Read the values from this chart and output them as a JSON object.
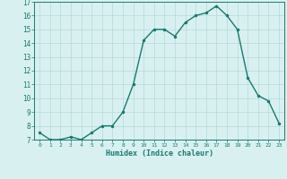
{
  "x": [
    0,
    1,
    2,
    3,
    4,
    5,
    6,
    7,
    8,
    9,
    10,
    11,
    12,
    13,
    14,
    15,
    16,
    17,
    18,
    19,
    20,
    21,
    22,
    23
  ],
  "y": [
    7.5,
    7.0,
    7.0,
    7.2,
    7.0,
    7.5,
    8.0,
    8.0,
    9.0,
    11.0,
    14.2,
    15.0,
    15.0,
    14.5,
    15.5,
    16.0,
    16.2,
    16.7,
    16.0,
    15.0,
    11.5,
    10.2,
    9.8,
    8.2
  ],
  "xlabel": "Humidex (Indice chaleur)",
  "ylim": [
    7,
    17
  ],
  "xlim": [
    -0.5,
    23.5
  ],
  "yticks": [
    7,
    8,
    9,
    10,
    11,
    12,
    13,
    14,
    15,
    16,
    17
  ],
  "xticks": [
    0,
    1,
    2,
    3,
    4,
    5,
    6,
    7,
    8,
    9,
    10,
    11,
    12,
    13,
    14,
    15,
    16,
    17,
    18,
    19,
    20,
    21,
    22,
    23
  ],
  "line_color": "#1a7a6e",
  "marker_color": "#1a7a6e",
  "bg_color": "#d8f0f0",
  "grid_color": "#b8d8d8",
  "axis_color": "#1a7a6e",
  "label_color": "#1a7a6e",
  "tick_label_color": "#1a7a6e"
}
